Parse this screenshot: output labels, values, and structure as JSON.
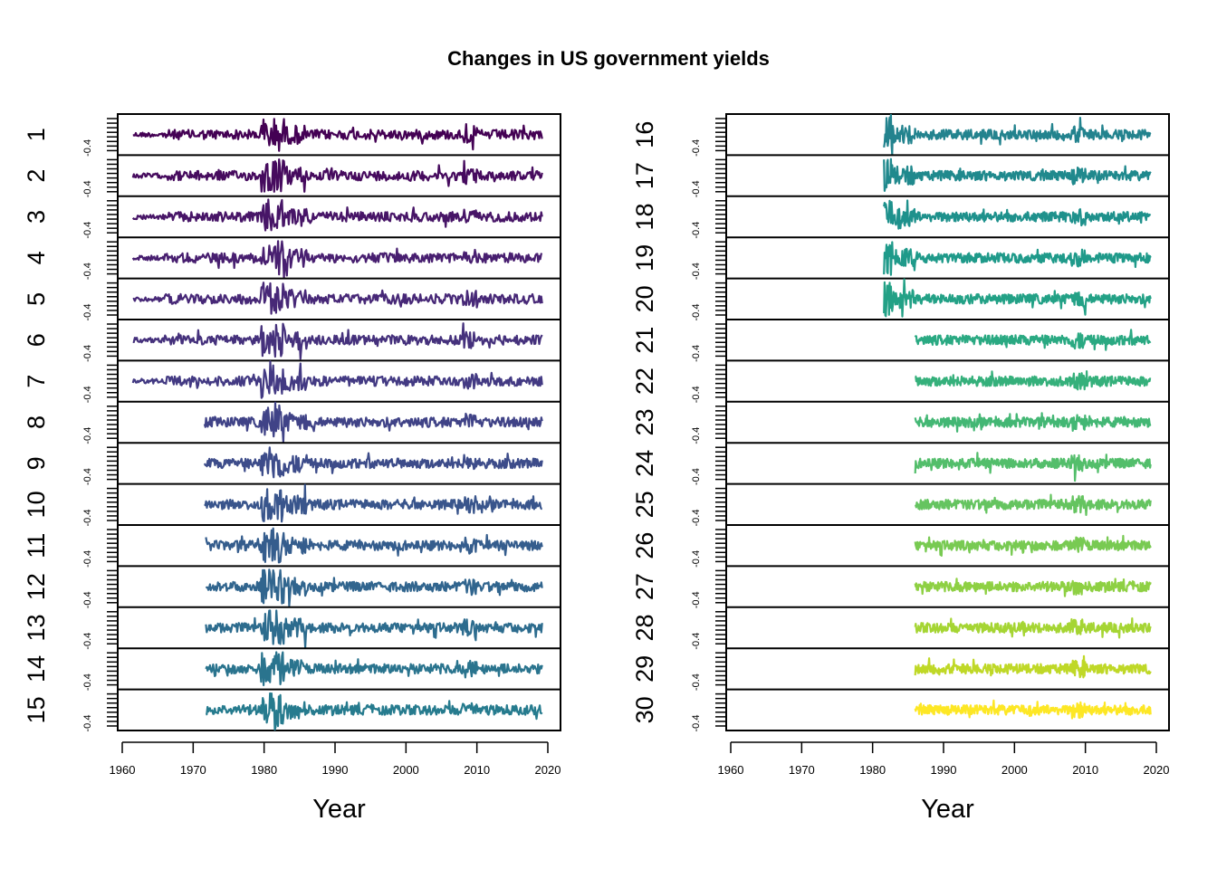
{
  "chart_data": {
    "type": "line",
    "title": "Changes in US government yields",
    "xlabel": "Year",
    "xlim": [
      1960,
      2020
    ],
    "x_ticks": [
      "1960",
      "1970",
      "1980",
      "1990",
      "2000",
      "2010",
      "2020"
    ],
    "y_tick_label": "-0.4",
    "panels": [
      {
        "name": "left",
        "series": [
          {
            "name": "1",
            "start": 1961.5,
            "end": 2019.2,
            "color": "#440154"
          },
          {
            "name": "2",
            "start": 1961.5,
            "end": 2019.2,
            "color": "#460B5E"
          },
          {
            "name": "3",
            "start": 1961.5,
            "end": 2019.2,
            "color": "#471567"
          },
          {
            "name": "4",
            "start": 1961.5,
            "end": 2019.2,
            "color": "#481F70"
          },
          {
            "name": "5",
            "start": 1961.5,
            "end": 2019.2,
            "color": "#472877"
          },
          {
            "name": "6",
            "start": 1961.5,
            "end": 2019.2,
            "color": "#45317C"
          },
          {
            "name": "7",
            "start": 1961.5,
            "end": 2019.2,
            "color": "#433A83"
          },
          {
            "name": "8",
            "start": 1971.6,
            "end": 2019.2,
            "color": "#404387"
          },
          {
            "name": "9",
            "start": 1971.6,
            "end": 2019.2,
            "color": "#3D4C8A"
          },
          {
            "name": "10",
            "start": 1971.6,
            "end": 2019.2,
            "color": "#39558C"
          },
          {
            "name": "11",
            "start": 1971.8,
            "end": 2019.2,
            "color": "#355D8D"
          },
          {
            "name": "12",
            "start": 1971.8,
            "end": 2019.2,
            "color": "#31658E"
          },
          {
            "name": "13",
            "start": 1971.8,
            "end": 2019.2,
            "color": "#2D6C8E"
          },
          {
            "name": "14",
            "start": 1971.8,
            "end": 2019.2,
            "color": "#2A748E"
          },
          {
            "name": "15",
            "start": 1971.8,
            "end": 2019.2,
            "color": "#267B8E"
          }
        ]
      },
      {
        "name": "right",
        "series": [
          {
            "name": "16",
            "start": 1981.6,
            "end": 2019.2,
            "color": "#23838E"
          },
          {
            "name": "17",
            "start": 1981.6,
            "end": 2019.2,
            "color": "#20898D"
          },
          {
            "name": "18",
            "start": 1981.6,
            "end": 2019.2,
            "color": "#1E918C"
          },
          {
            "name": "19",
            "start": 1981.6,
            "end": 2019.2,
            "color": "#1F9A8A"
          },
          {
            "name": "20",
            "start": 1981.6,
            "end": 2019.2,
            "color": "#23A186"
          },
          {
            "name": "21",
            "start": 1986.0,
            "end": 2019.2,
            "color": "#2AA982"
          },
          {
            "name": "22",
            "start": 1986.0,
            "end": 2019.2,
            "color": "#35B07B"
          },
          {
            "name": "23",
            "start": 1986.0,
            "end": 2019.2,
            "color": "#43B774"
          },
          {
            "name": "24",
            "start": 1986.0,
            "end": 2019.2,
            "color": "#53BE6B"
          },
          {
            "name": "25",
            "start": 1986.0,
            "end": 2019.2,
            "color": "#65C460"
          },
          {
            "name": "26",
            "start": 1986.0,
            "end": 2019.2,
            "color": "#78CA52"
          },
          {
            "name": "27",
            "start": 1986.0,
            "end": 2019.2,
            "color": "#8ED043"
          },
          {
            "name": "28",
            "start": 1986.0,
            "end": 2019.2,
            "color": "#A5D533"
          },
          {
            "name": "29",
            "start": 1986.0,
            "end": 2019.2,
            "color": "#BFD827"
          },
          {
            "name": "30",
            "start": 1986.0,
            "end": 2019.2,
            "color": "#FDE725"
          }
        ]
      }
    ]
  }
}
